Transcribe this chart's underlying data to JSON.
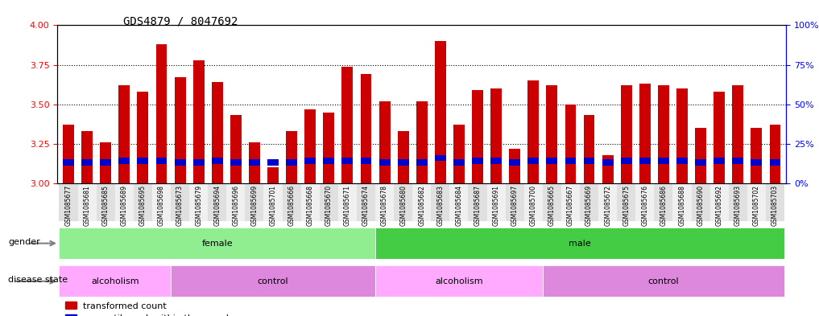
{
  "title": "GDS4879 / 8047692",
  "samples": [
    "GSM1085677",
    "GSM1085681",
    "GSM1085685",
    "GSM1085689",
    "GSM1085695",
    "GSM1085698",
    "GSM1085673",
    "GSM1085679",
    "GSM1085694",
    "GSM1085696",
    "GSM1085699",
    "GSM1085701",
    "GSM1085666",
    "GSM1085668",
    "GSM1085670",
    "GSM1085671",
    "GSM1085674",
    "GSM1085678",
    "GSM1085680",
    "GSM1085682",
    "GSM1085683",
    "GSM1085684",
    "GSM1085687",
    "GSM1085691",
    "GSM1085697",
    "GSM1085700",
    "GSM1085665",
    "GSM1085667",
    "GSM1085669",
    "GSM1085672",
    "GSM1085675",
    "GSM1085676",
    "GSM1085686",
    "GSM1085688",
    "GSM1085690",
    "GSM1085692",
    "GSM1085693",
    "GSM1085702",
    "GSM1085703"
  ],
  "transformed_count": [
    3.37,
    3.33,
    3.26,
    3.62,
    3.58,
    3.88,
    3.67,
    3.78,
    3.64,
    3.43,
    3.26,
    3.1,
    3.33,
    3.47,
    3.45,
    3.74,
    3.69,
    3.52,
    3.33,
    3.52,
    3.9,
    3.37,
    3.59,
    3.6,
    3.22,
    3.65,
    3.62,
    3.5,
    3.43,
    3.18,
    3.62,
    3.63,
    3.62,
    3.6,
    3.35,
    3.58,
    3.62,
    3.35,
    3.37
  ],
  "percentile_rank": [
    3.13,
    3.13,
    3.13,
    3.14,
    3.14,
    3.14,
    3.13,
    3.13,
    3.14,
    3.13,
    3.13,
    3.13,
    3.13,
    3.14,
    3.14,
    3.14,
    3.14,
    3.13,
    3.13,
    3.13,
    3.16,
    3.13,
    3.14,
    3.14,
    3.13,
    3.14,
    3.14,
    3.14,
    3.14,
    3.13,
    3.14,
    3.14,
    3.14,
    3.14,
    3.13,
    3.14,
    3.14,
    3.13,
    3.13
  ],
  "gender": [
    "female",
    "female",
    "female",
    "female",
    "female",
    "female",
    "female",
    "female",
    "female",
    "female",
    "female",
    "female",
    "female",
    "female",
    "female",
    "female",
    "female",
    "male",
    "male",
    "male",
    "male",
    "male",
    "male",
    "male",
    "male",
    "male",
    "male",
    "male",
    "male",
    "male",
    "male",
    "male",
    "male",
    "male",
    "male",
    "male",
    "male",
    "male",
    "male"
  ],
  "disease_state": [
    "alcoholism",
    "alcoholism",
    "alcoholism",
    "alcoholism",
    "alcoholism",
    "alcoholism",
    "control",
    "control",
    "control",
    "control",
    "control",
    "control",
    "control",
    "control",
    "control",
    "control",
    "control",
    "alcoholism",
    "alcoholism",
    "alcoholism",
    "alcoholism",
    "alcoholism",
    "alcoholism",
    "alcoholism",
    "alcoholism",
    "alcoholism",
    "control",
    "control",
    "control",
    "control",
    "control",
    "control",
    "control",
    "control",
    "control",
    "control",
    "control",
    "control",
    "control"
  ],
  "ylim_left": [
    3.0,
    4.0
  ],
  "ylim_right": [
    0,
    100
  ],
  "yticks_left": [
    3.0,
    3.25,
    3.5,
    3.75,
    4.0
  ],
  "yticks_right": [
    0,
    25,
    50,
    75,
    100
  ],
  "bar_color": "#cc0000",
  "percentile_color": "#0000cc",
  "female_color": "#90ee90",
  "male_color": "#44cc44",
  "alcoholism_color": "#ffaaff",
  "control_color": "#dd88dd",
  "title_fontsize": 10,
  "bar_width": 0.6
}
